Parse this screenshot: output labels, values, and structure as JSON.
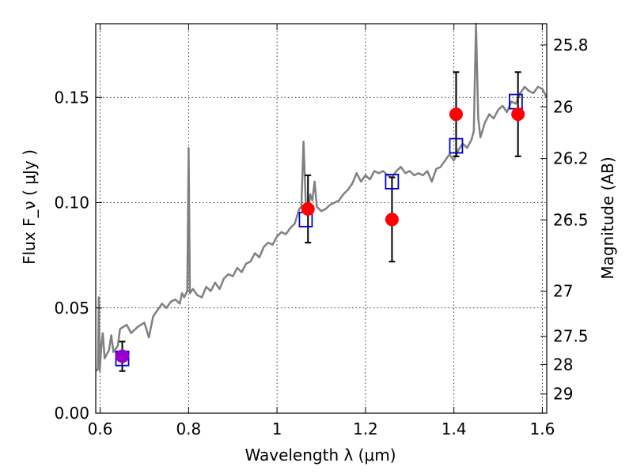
{
  "chart_data": {
    "type": "scatter",
    "title": "",
    "xlabel": "Wavelength  λ (μm)",
    "ylabel": "Flux  F_ν  ( μJy )",
    "ylabel_right": "Magnitude (AB)",
    "xlim": [
      0.59,
      1.61
    ],
    "ylim": [
      0.0,
      0.185
    ],
    "grid": true,
    "x_ticks": [
      0.6,
      0.8,
      1.0,
      1.2,
      1.4,
      1.6
    ],
    "x_tick_labels": [
      "0.6",
      "0.8",
      "1",
      "1.2",
      "1.4",
      "1.6"
    ],
    "y_ticks": [
      0.0,
      0.05,
      0.1,
      0.15
    ],
    "y_tick_labels": [
      "0.00",
      "0.05",
      "0.10",
      "0.15"
    ],
    "right_ticks": [
      {
        "label": "25.8",
        "flux": 0.1749
      },
      {
        "label": "26",
        "flux": 0.1455
      },
      {
        "label": "26.2",
        "flux": 0.121
      },
      {
        "label": "26.5",
        "flux": 0.0918
      },
      {
        "label": "27",
        "flux": 0.0579
      },
      {
        "label": "27.5",
        "flux": 0.0365
      },
      {
        "label": "28",
        "flux": 0.0231
      },
      {
        "label": "29",
        "flux": 0.0091
      }
    ],
    "series": [
      {
        "type": "line",
        "color": "#808080",
        "points": [
          [
            0.59,
            0.02
          ],
          [
            0.595,
            0.021
          ],
          [
            0.597,
            0.055
          ],
          [
            0.599,
            0.02
          ],
          [
            0.603,
            0.033
          ],
          [
            0.606,
            0.038
          ],
          [
            0.61,
            0.026
          ],
          [
            0.62,
            0.03
          ],
          [
            0.625,
            0.037
          ],
          [
            0.63,
            0.029
          ],
          [
            0.64,
            0.032
          ],
          [
            0.645,
            0.04
          ],
          [
            0.66,
            0.042
          ],
          [
            0.67,
            0.038
          ],
          [
            0.685,
            0.041
          ],
          [
            0.7,
            0.043
          ],
          [
            0.71,
            0.036
          ],
          [
            0.72,
            0.046
          ],
          [
            0.73,
            0.049
          ],
          [
            0.74,
            0.052
          ],
          [
            0.75,
            0.05
          ],
          [
            0.76,
            0.053
          ],
          [
            0.77,
            0.054
          ],
          [
            0.78,
            0.052
          ],
          [
            0.785,
            0.057
          ],
          [
            0.79,
            0.055
          ],
          [
            0.797,
            0.058
          ],
          [
            0.8,
            0.126
          ],
          [
            0.803,
            0.057
          ],
          [
            0.81,
            0.059
          ],
          [
            0.82,
            0.056
          ],
          [
            0.83,
            0.055
          ],
          [
            0.84,
            0.06
          ],
          [
            0.85,
            0.058
          ],
          [
            0.86,
            0.062
          ],
          [
            0.87,
            0.059
          ],
          [
            0.88,
            0.064
          ],
          [
            0.89,
            0.066
          ],
          [
            0.9,
            0.065
          ],
          [
            0.91,
            0.069
          ],
          [
            0.92,
            0.067
          ],
          [
            0.93,
            0.071
          ],
          [
            0.94,
            0.072
          ],
          [
            0.95,
            0.076
          ],
          [
            0.96,
            0.074
          ],
          [
            0.97,
            0.079
          ],
          [
            0.98,
            0.081
          ],
          [
            0.99,
            0.08
          ],
          [
            1.0,
            0.084
          ],
          [
            1.01,
            0.086
          ],
          [
            1.02,
            0.085
          ],
          [
            1.03,
            0.088
          ],
          [
            1.04,
            0.09
          ],
          [
            1.05,
            0.097
          ],
          [
            1.055,
            0.098
          ],
          [
            1.06,
            0.129
          ],
          [
            1.065,
            0.1
          ],
          [
            1.07,
            0.094
          ],
          [
            1.075,
            0.104
          ],
          [
            1.08,
            0.101
          ],
          [
            1.085,
            0.11
          ],
          [
            1.09,
            0.098
          ],
          [
            1.1,
            0.096
          ],
          [
            1.11,
            0.097
          ],
          [
            1.12,
            0.099
          ],
          [
            1.13,
            0.1
          ],
          [
            1.14,
            0.101
          ],
          [
            1.15,
            0.104
          ],
          [
            1.16,
            0.106
          ],
          [
            1.17,
            0.109
          ],
          [
            1.18,
            0.114
          ],
          [
            1.19,
            0.11
          ],
          [
            1.2,
            0.113
          ],
          [
            1.21,
            0.111
          ],
          [
            1.22,
            0.115
          ],
          [
            1.23,
            0.114
          ],
          [
            1.24,
            0.115
          ],
          [
            1.25,
            0.113
          ],
          [
            1.26,
            0.112
          ],
          [
            1.27,
            0.115
          ],
          [
            1.28,
            0.117
          ],
          [
            1.29,
            0.114
          ],
          [
            1.3,
            0.115
          ],
          [
            1.31,
            0.113
          ],
          [
            1.32,
            0.114
          ],
          [
            1.33,
            0.113
          ],
          [
            1.34,
            0.115
          ],
          [
            1.35,
            0.11
          ],
          [
            1.36,
            0.116
          ],
          [
            1.37,
            0.117
          ],
          [
            1.38,
            0.12
          ],
          [
            1.39,
            0.123
          ],
          [
            1.4,
            0.12
          ],
          [
            1.41,
            0.125
          ],
          [
            1.42,
            0.128
          ],
          [
            1.43,
            0.126
          ],
          [
            1.44,
            0.13
          ],
          [
            1.445,
            0.134
          ],
          [
            1.45,
            0.185
          ],
          [
            1.455,
            0.14
          ],
          [
            1.46,
            0.131
          ],
          [
            1.47,
            0.138
          ],
          [
            1.48,
            0.142
          ],
          [
            1.49,
            0.14
          ],
          [
            1.5,
            0.144
          ],
          [
            1.51,
            0.146
          ],
          [
            1.52,
            0.143
          ],
          [
            1.53,
            0.148
          ],
          [
            1.54,
            0.147
          ],
          [
            1.55,
            0.152
          ],
          [
            1.56,
            0.155
          ],
          [
            1.57,
            0.153
          ],
          [
            1.58,
            0.152
          ],
          [
            1.59,
            0.155
          ],
          [
            1.6,
            0.154
          ],
          [
            1.61,
            0.15
          ]
        ]
      },
      {
        "type": "scatter",
        "marker": "circle",
        "color": "#ff0000",
        "points": [
          {
            "x": 0.65,
            "y": 0.027,
            "yerr": 0.007
          },
          {
            "x": 1.07,
            "y": 0.097,
            "yerr": 0.016
          },
          {
            "x": 1.26,
            "y": 0.092,
            "yerr": 0.02
          },
          {
            "x": 1.405,
            "y": 0.142,
            "yerr": 0.02
          },
          {
            "x": 1.545,
            "y": 0.142,
            "yerr": 0.02
          }
        ]
      },
      {
        "type": "scatter",
        "marker": "square-open",
        "color": "#0000cc",
        "points": [
          {
            "x": 0.65,
            "y": 0.026
          },
          {
            "x": 1.065,
            "y": 0.092
          },
          {
            "x": 1.26,
            "y": 0.11
          },
          {
            "x": 1.405,
            "y": 0.127
          },
          {
            "x": 1.54,
            "y": 0.148
          }
        ]
      }
    ],
    "colors": {
      "overlap_marker": "#9900cc",
      "errorbar": "#000000"
    }
  }
}
